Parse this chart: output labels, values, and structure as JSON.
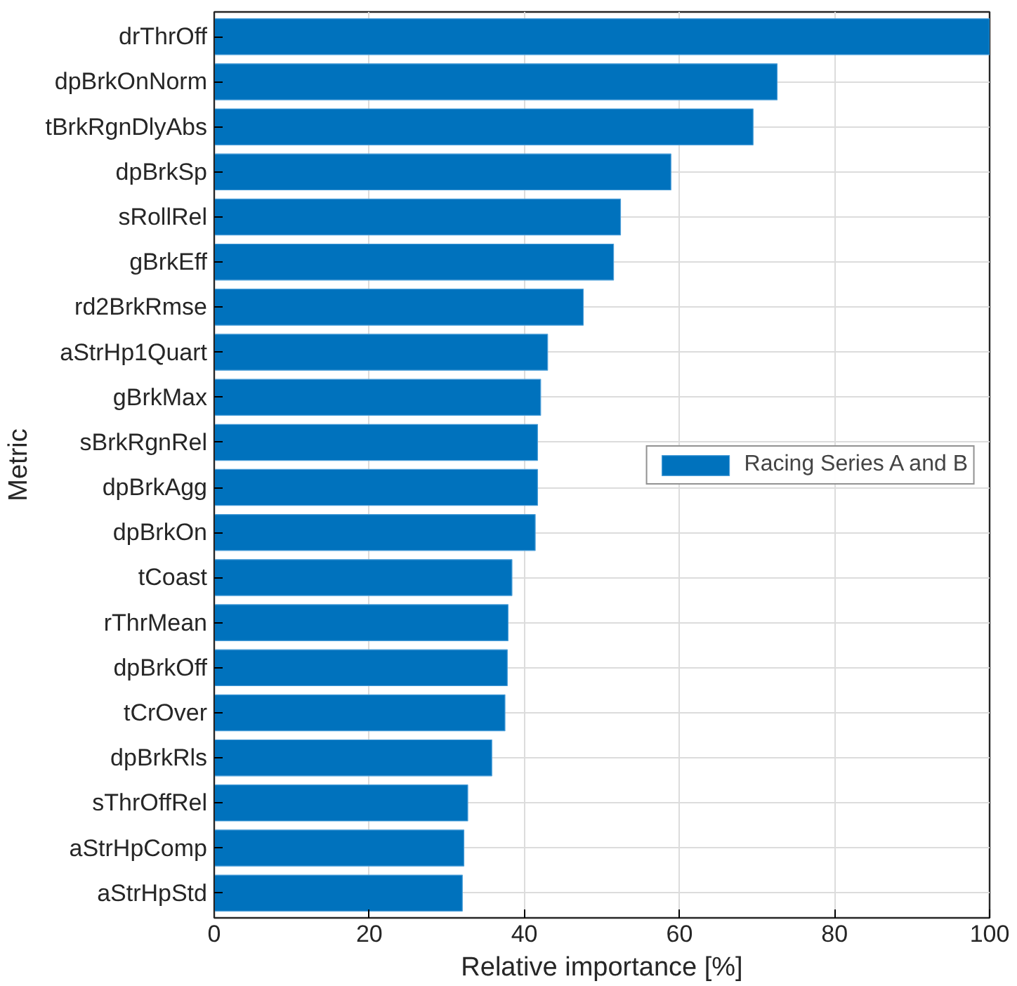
{
  "chart_data": {
    "type": "bar",
    "orientation": "horizontal",
    "xlabel": "Relative importance [%]",
    "ylabel": "Metric",
    "categories": [
      "drThrOff",
      "dpBrkOnNorm",
      "tBrkRgnDlyAbs",
      "dpBrkSp",
      "sRollRel",
      "gBrkEff",
      "rd2BrkRmse",
      "aStrHp1Quart",
      "gBrkMax",
      "sBrkRgnRel",
      "dpBrkAgg",
      "dpBrkOn",
      "tCoast",
      "rThrMean",
      "dpBrkOff",
      "tCrOver",
      "dpBrkRls",
      "sThrOffRel",
      "aStrHpComp",
      "aStrHpStd"
    ],
    "series": [
      {
        "name": "Racing Series A and B",
        "color": "#0072bd",
        "values": [
          100,
          72.6,
          69.5,
          58.9,
          52.4,
          51.5,
          47.6,
          43.0,
          42.1,
          41.7,
          41.7,
          41.4,
          38.4,
          37.9,
          37.8,
          37.5,
          35.8,
          32.7,
          32.2,
          32.0
        ]
      }
    ],
    "xlim": [
      0,
      100
    ],
    "xticks": [
      0,
      20,
      40,
      60,
      80,
      100
    ],
    "grid": true,
    "legend": "right"
  }
}
